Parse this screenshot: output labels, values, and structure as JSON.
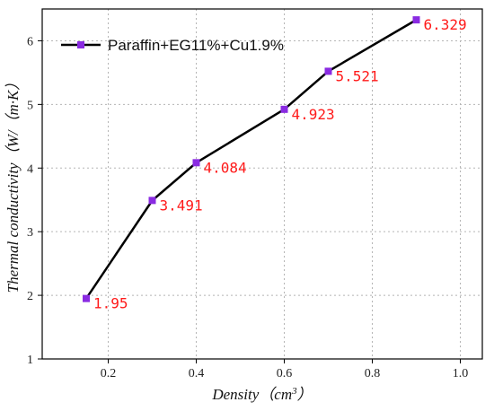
{
  "chart_data": {
    "type": "line",
    "title": "",
    "xlabel": "Density（cm",
    "xlabel_sup": "3",
    "xlabel_close": "）",
    "ylabel": "Thermal conductivity（W/（m·K）",
    "xlim": [
      0.05,
      1.05
    ],
    "ylim": [
      1,
      6.5
    ],
    "x_ticks": [
      0.2,
      0.4,
      0.6,
      0.8,
      1.0
    ],
    "x_tick_labels": [
      "0.2",
      "0.4",
      "0.6",
      "0.8",
      "1.0"
    ],
    "y_ticks": [
      1,
      2,
      3,
      4,
      5,
      6
    ],
    "y_tick_labels": [
      "1",
      "2",
      "3",
      "4",
      "5",
      "6"
    ],
    "grid": true,
    "legend_position": "top-left",
    "series": [
      {
        "name": "Paraffin+EG11%+Cu1.9%",
        "color": "#000000",
        "marker_color": "#8a2be2",
        "x": [
          0.15,
          0.3,
          0.4,
          0.6,
          0.7,
          0.9
        ],
        "y": [
          1.95,
          3.491,
          4.084,
          4.923,
          5.521,
          6.329
        ],
        "labels": [
          "1.95",
          "3.491",
          "4.084",
          "4.923",
          "5.521",
          "6.329"
        ]
      }
    ],
    "label_color": "#ff1a1a"
  }
}
